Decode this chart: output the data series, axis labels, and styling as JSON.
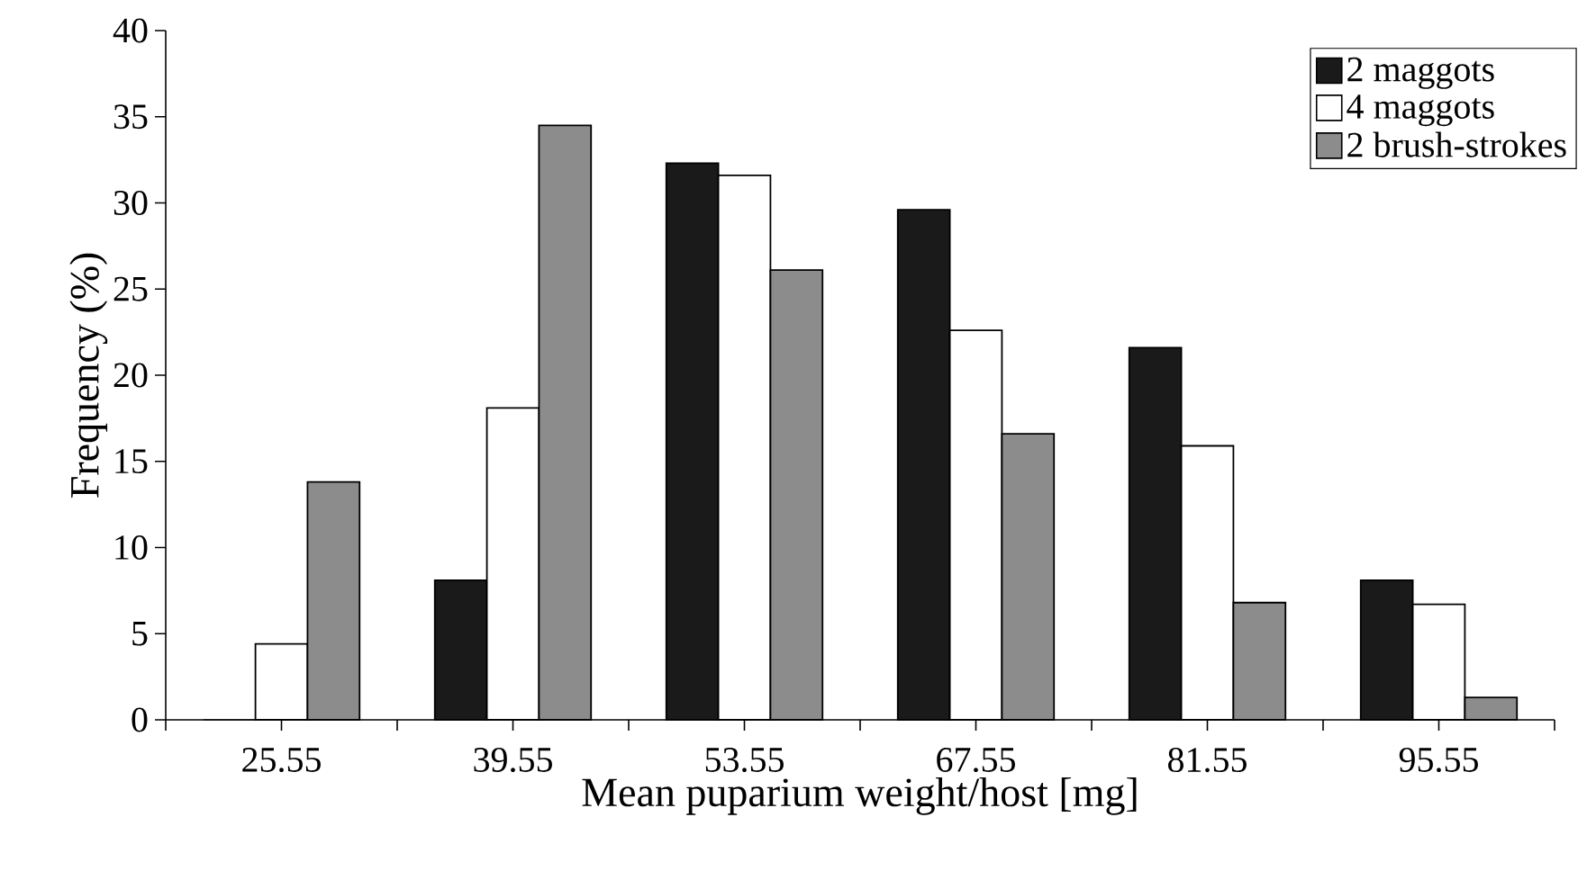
{
  "chart_data": {
    "type": "bar",
    "xlabel": "Mean puparium weight/host [mg]",
    "ylabel": "Frequency (%)",
    "categories": [
      "25.55",
      "39.55",
      "53.55",
      "67.55",
      "81.55",
      "95.55"
    ],
    "series": [
      {
        "name": "2 maggots",
        "color": "#1a1a1a",
        "values": [
          0,
          8.1,
          32.3,
          29.6,
          21.6,
          8.1
        ]
      },
      {
        "name": "4 maggots",
        "color": "#ffffff",
        "values": [
          4.4,
          18.1,
          31.6,
          22.6,
          15.9,
          6.7
        ]
      },
      {
        "name": "2 brush-strokes",
        "color": "#8c8c8c",
        "values": [
          13.8,
          34.5,
          26.1,
          16.6,
          6.8,
          1.3
        ]
      }
    ],
    "ylim": [
      0,
      40
    ],
    "yticks": [
      0,
      5,
      10,
      15,
      20,
      25,
      30,
      35,
      40
    ],
    "grid": false,
    "legend": "top right"
  }
}
